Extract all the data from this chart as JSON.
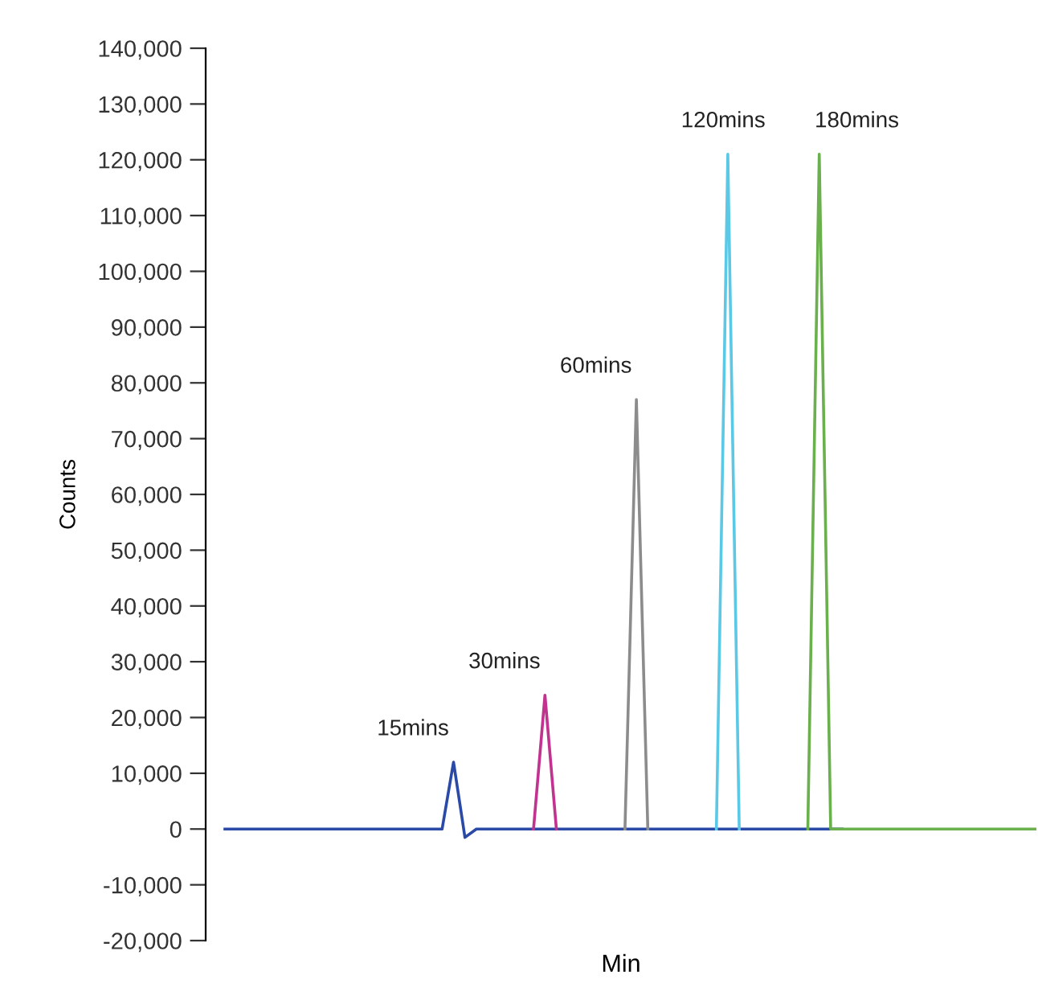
{
  "chart_data": {
    "type": "line",
    "xlabel": "Min",
    "ylabel": "Counts",
    "categories": [
      null,
      null,
      null,
      null,
      null,
      null,
      null,
      null,
      null,
      null,
      null,
      null,
      null,
      null,
      null,
      null,
      null,
      null,
      null,
      null,
      null,
      null,
      null,
      null,
      null,
      null,
      null,
      null,
      null,
      null,
      null,
      null,
      null,
      null,
      null,
      null,
      null,
      null,
      null,
      null,
      null,
      null,
      null,
      null,
      null,
      null,
      null,
      null,
      null,
      null,
      null,
      null,
      null,
      null,
      null,
      null,
      null,
      null,
      null,
      null,
      null,
      null,
      null,
      null,
      null,
      null,
      null,
      null,
      null,
      null,
      null,
      null
    ],
    "ylim": [
      -20000,
      140000
    ],
    "yticks": [
      {
        "value": -20000,
        "label": "-20,000"
      },
      {
        "value": -10000,
        "label": "-10,000"
      },
      {
        "value": 0,
        "label": "0"
      },
      {
        "value": 10000,
        "label": "10,000"
      },
      {
        "value": 20000,
        "label": "20,000"
      },
      {
        "value": 30000,
        "label": "30,000"
      },
      {
        "value": 40000,
        "label": "40,000"
      },
      {
        "value": 50000,
        "label": "50,000"
      },
      {
        "value": 60000,
        "label": "60,000"
      },
      {
        "value": 70000,
        "label": "70,000"
      },
      {
        "value": 80000,
        "label": "80,000"
      },
      {
        "value": 90000,
        "label": "90,000"
      },
      {
        "value": 100000,
        "label": "100,000"
      },
      {
        "value": 110000,
        "label": "110,000"
      },
      {
        "value": 120000,
        "label": "120,000"
      },
      {
        "value": 130000,
        "label": "130,000"
      },
      {
        "value": 140000,
        "label": "140,000"
      }
    ],
    "tick_labels": "y",
    "grid": false,
    "legend": false,
    "marker": "none",
    "line_style": "solid",
    "series": [
      {
        "name": "15mins",
        "color": "#2b4aa8",
        "values": [
          0,
          0,
          0,
          0,
          0,
          0,
          0,
          0,
          0,
          0,
          0,
          0,
          0,
          0,
          0,
          0,
          0,
          0,
          0,
          0,
          12000,
          -1500,
          0,
          0,
          0,
          0,
          0,
          0,
          0,
          0,
          0,
          0,
          0,
          0,
          0,
          0,
          0,
          0,
          0,
          0,
          0,
          0,
          0,
          0,
          0,
          0,
          0,
          0,
          0,
          0,
          0,
          0,
          0,
          0,
          0,
          null,
          null,
          null,
          null,
          null,
          null,
          null,
          null,
          null,
          null,
          null,
          null,
          null,
          null,
          null,
          null,
          null
        ]
      },
      {
        "name": "30mins",
        "color": "#c2338f",
        "values": [
          null,
          null,
          null,
          null,
          null,
          null,
          null,
          null,
          null,
          null,
          null,
          null,
          null,
          null,
          null,
          null,
          null,
          null,
          null,
          null,
          null,
          null,
          null,
          null,
          null,
          null,
          null,
          0,
          24000,
          0,
          null,
          null,
          null,
          null,
          null,
          null,
          null,
          null,
          null,
          null,
          null,
          null,
          null,
          null,
          null,
          null,
          null,
          null,
          null,
          null,
          null,
          null,
          null,
          null,
          null,
          null,
          null,
          null,
          null,
          null,
          null,
          null,
          null,
          null,
          null,
          null,
          null,
          null,
          null,
          null,
          null,
          null
        ]
      },
      {
        "name": "60mins",
        "color": "#8c8c8c",
        "values": [
          null,
          null,
          null,
          null,
          null,
          null,
          null,
          null,
          null,
          null,
          null,
          null,
          null,
          null,
          null,
          null,
          null,
          null,
          null,
          null,
          null,
          null,
          null,
          null,
          null,
          null,
          null,
          null,
          null,
          null,
          null,
          null,
          null,
          null,
          null,
          0,
          77000,
          0,
          null,
          null,
          null,
          null,
          null,
          null,
          null,
          null,
          null,
          null,
          null,
          null,
          null,
          null,
          null,
          null,
          null,
          null,
          null,
          null,
          null,
          null,
          null,
          null,
          null,
          null,
          null,
          null,
          null,
          null,
          null,
          null,
          null,
          null
        ]
      },
      {
        "name": "120mins",
        "color": "#5bc8e6",
        "values": [
          null,
          null,
          null,
          null,
          null,
          null,
          null,
          null,
          null,
          null,
          null,
          null,
          null,
          null,
          null,
          null,
          null,
          null,
          null,
          null,
          null,
          null,
          null,
          null,
          null,
          null,
          null,
          null,
          null,
          null,
          null,
          null,
          null,
          null,
          null,
          null,
          null,
          null,
          null,
          null,
          null,
          null,
          null,
          0,
          121000,
          0,
          null,
          null,
          null,
          null,
          null,
          null,
          null,
          null,
          null,
          null,
          null,
          null,
          null,
          null,
          null,
          null,
          null,
          null,
          null,
          null,
          null,
          null,
          null,
          null,
          null,
          null
        ]
      },
      {
        "name": "180mins",
        "color": "#6ab04c",
        "values": [
          null,
          null,
          null,
          null,
          null,
          null,
          null,
          null,
          null,
          null,
          null,
          null,
          null,
          null,
          null,
          null,
          null,
          null,
          null,
          null,
          null,
          null,
          null,
          null,
          null,
          null,
          null,
          null,
          null,
          null,
          null,
          null,
          null,
          null,
          null,
          null,
          null,
          null,
          null,
          null,
          null,
          null,
          null,
          null,
          null,
          null,
          null,
          null,
          null,
          null,
          null,
          0,
          121000,
          0,
          0,
          0,
          0,
          0,
          0,
          0,
          0,
          0,
          0,
          0,
          0,
          0,
          0,
          0,
          0,
          0,
          0,
          0
        ]
      }
    ]
  }
}
